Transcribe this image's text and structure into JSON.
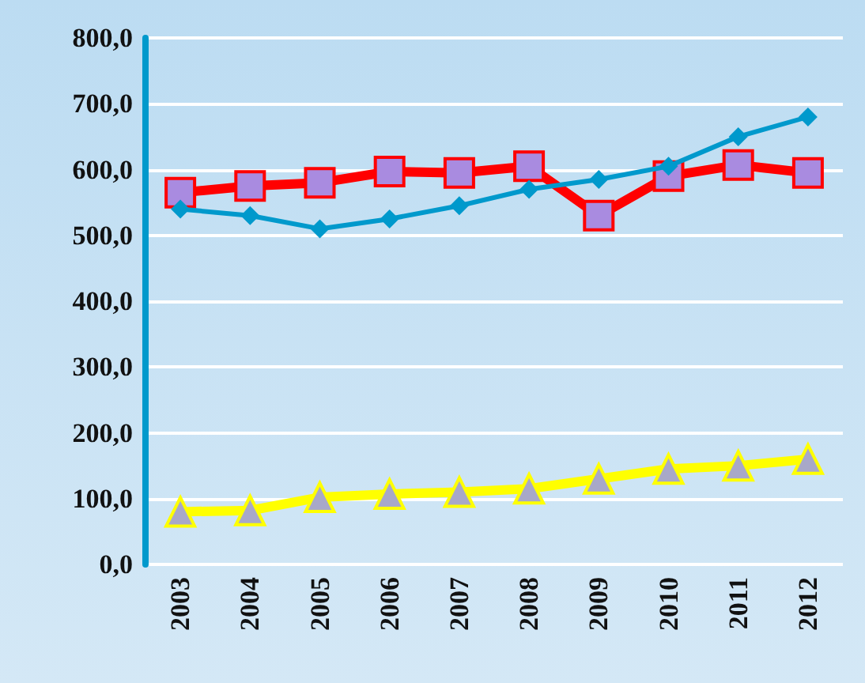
{
  "chart_data": {
    "type": "line",
    "categories": [
      "2003",
      "2004",
      "2005",
      "2006",
      "2007",
      "2008",
      "2009",
      "2010",
      "2011",
      "2012"
    ],
    "series": [
      {
        "color": "#0099cc",
        "marker": "diamond",
        "values": [
          540,
          530,
          510,
          525,
          545,
          570,
          585,
          605,
          650,
          680
        ]
      },
      {
        "color": "#ff0000",
        "marker": "square",
        "values": [
          565,
          575,
          580,
          597,
          595,
          605,
          530,
          590,
          607,
          595
        ]
      },
      {
        "color": "#ffff00",
        "marker": "triangle",
        "values": [
          80,
          82,
          102,
          107,
          110,
          115,
          130,
          145,
          150,
          160
        ]
      }
    ],
    "ylim": [
      0,
      800
    ],
    "yticks": [
      {
        "value": 0,
        "label": "0,0"
      },
      {
        "value": 100,
        "label": "100,0"
      },
      {
        "value": 200,
        "label": "200,0"
      },
      {
        "value": 300,
        "label": "300,0"
      },
      {
        "value": 400,
        "label": "400,0"
      },
      {
        "value": 500,
        "label": "500,0"
      },
      {
        "value": 600,
        "label": "600,0"
      },
      {
        "value": 700,
        "label": "700,0"
      },
      {
        "value": 800,
        "label": "800,0"
      }
    ],
    "grid": "y",
    "line_style": "solid"
  }
}
